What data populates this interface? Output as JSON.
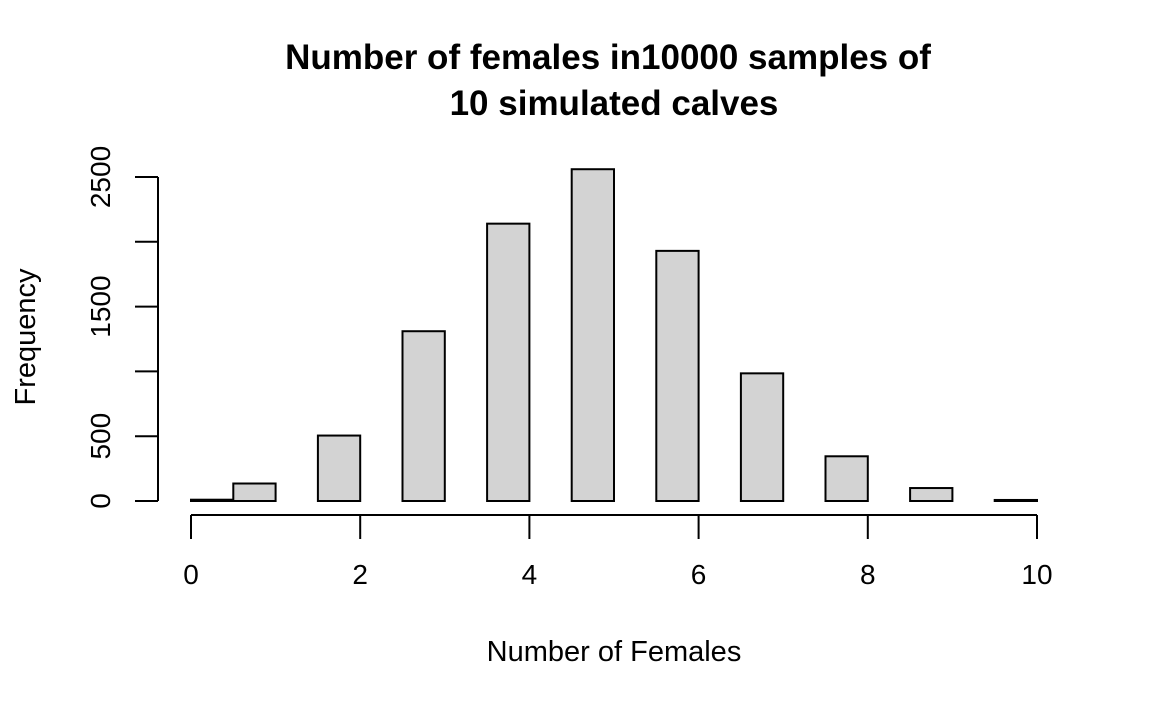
{
  "chart_data": {
    "type": "bar",
    "title_line1": "Number of females in10000 samples of",
    "title_line2": "10 simulated calves",
    "xlabel": "Number of Females",
    "ylabel": "Frequency",
    "xlim": [
      0,
      10
    ],
    "ylim": [
      0,
      2500
    ],
    "x_ticks": [
      0,
      2,
      4,
      6,
      8,
      10
    ],
    "y_ticks": [
      0,
      500,
      1500,
      2500
    ],
    "y_tick_marks": [
      0,
      500,
      1000,
      1500,
      2000,
      2500
    ],
    "bins": [
      {
        "start": 0.0,
        "end": 0.5,
        "value": 10
      },
      {
        "start": 0.5,
        "end": 1.0,
        "value": 135
      },
      {
        "start": 1.5,
        "end": 2.0,
        "value": 505
      },
      {
        "start": 2.5,
        "end": 3.0,
        "value": 1310
      },
      {
        "start": 3.5,
        "end": 4.0,
        "value": 2140
      },
      {
        "start": 4.5,
        "end": 5.0,
        "value": 2560
      },
      {
        "start": 5.5,
        "end": 6.0,
        "value": 1930
      },
      {
        "start": 6.5,
        "end": 7.0,
        "value": 985
      },
      {
        "start": 7.5,
        "end": 8.0,
        "value": 345
      },
      {
        "start": 8.5,
        "end": 9.0,
        "value": 100
      },
      {
        "start": 9.5,
        "end": 10.0,
        "value": 8
      }
    ],
    "grid": false,
    "legend": "none"
  }
}
